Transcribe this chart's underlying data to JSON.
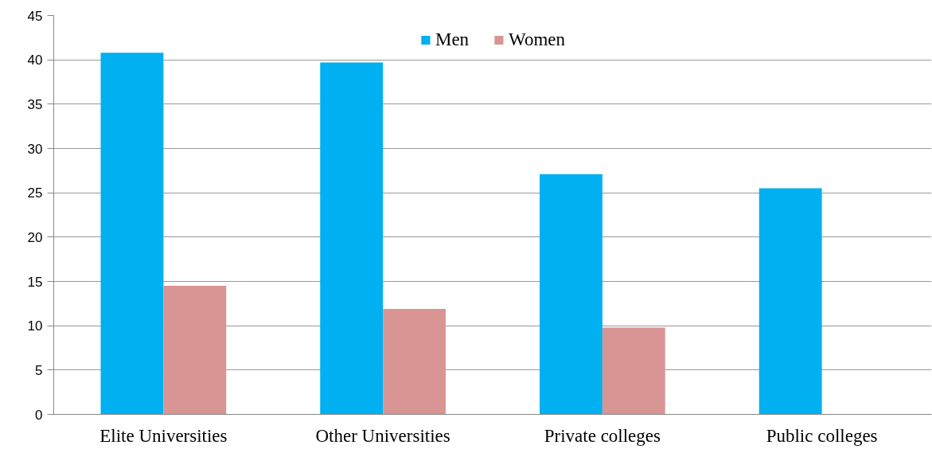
{
  "chart_data": {
    "type": "bar",
    "categories": [
      "Elite Universities",
      "Other Universities",
      "Private colleges",
      "Public colleges"
    ],
    "series": [
      {
        "name": "Men",
        "color": "#00b0f0",
        "values": [
          40.8,
          39.7,
          27.1,
          25.5
        ]
      },
      {
        "name": "Women",
        "color": "#d99594",
        "values": [
          14.5,
          11.9,
          9.8,
          null
        ]
      }
    ],
    "ylim": [
      0,
      45
    ],
    "yticks": [
      0,
      5,
      10,
      15,
      20,
      25,
      30,
      35,
      40,
      45
    ],
    "grid": "y",
    "legend": "top"
  }
}
